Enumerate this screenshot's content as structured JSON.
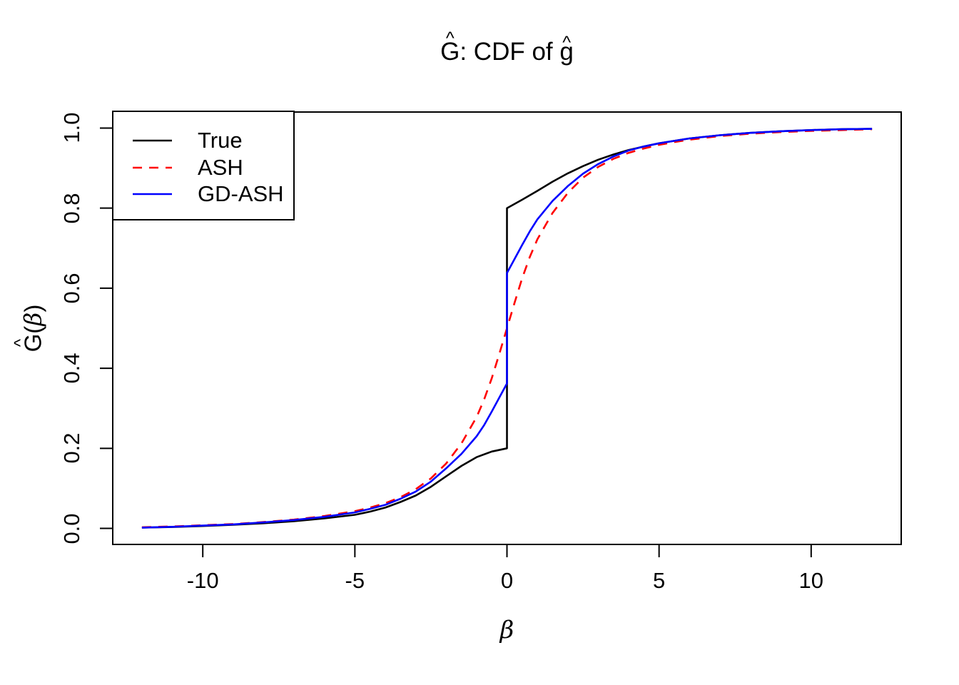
{
  "display": {
    "hat_char": "^",
    "title_g1": "G",
    "title_mid": ": CDF of ",
    "title_g2": "g",
    "ylabel_g": "G",
    "ylabel_open": "(",
    "ylabel_beta": "β",
    "ylabel_close": ")",
    "xlabel_beta": "β"
  },
  "chart_data": {
    "type": "line",
    "title": "Ĝ: CDF of ĝ",
    "xlabel": "β",
    "ylabel": "Ĝ(β)",
    "xlim": [
      -12.96,
      12.96
    ],
    "ylim": [
      -0.04,
      1.04
    ],
    "x_ticks": {
      "values": [
        -10,
        -5,
        0,
        5,
        10
      ],
      "labels": [
        "-10",
        "-5",
        "0",
        "5",
        "10"
      ]
    },
    "y_ticks": {
      "values": [
        0.0,
        0.2,
        0.4,
        0.6,
        0.8,
        1.0
      ],
      "labels": [
        "0.0",
        "0.2",
        "0.4",
        "0.6",
        "0.8",
        "1.0"
      ]
    },
    "grid": false,
    "background": "#ffffff",
    "box_color": "#000000",
    "legend": {
      "position": "top-left",
      "labels": [
        "True",
        "ASH",
        "GD-ASH"
      ]
    },
    "series": [
      {
        "name": "True",
        "color": "#000000",
        "linestyle": "solid",
        "linewidth": 2.6,
        "jump_at_zero": [
          0.2,
          0.8
        ],
        "points": [
          [
            -12,
            0.002
          ],
          [
            -11,
            0.0035
          ],
          [
            -10,
            0.006
          ],
          [
            -9,
            0.009
          ],
          [
            -8,
            0.013
          ],
          [
            -7,
            0.018
          ],
          [
            -6,
            0.025
          ],
          [
            -5,
            0.034
          ],
          [
            -4.5,
            0.042
          ],
          [
            -4,
            0.052
          ],
          [
            -3.5,
            0.066
          ],
          [
            -3,
            0.082
          ],
          [
            -2.5,
            0.104
          ],
          [
            -2,
            0.13
          ],
          [
            -1.5,
            0.156
          ],
          [
            -1,
            0.178
          ],
          [
            -0.5,
            0.192
          ],
          [
            0,
            0.2
          ],
          [
            0,
            0.8
          ],
          [
            0.5,
            0.821
          ],
          [
            1,
            0.843
          ],
          [
            1.5,
            0.866
          ],
          [
            2,
            0.887
          ],
          [
            2.5,
            0.905
          ],
          [
            3,
            0.921
          ],
          [
            3.5,
            0.934
          ],
          [
            4,
            0.945
          ],
          [
            4.5,
            0.954
          ],
          [
            5,
            0.962
          ],
          [
            5.5,
            0.968
          ],
          [
            6,
            0.974
          ],
          [
            7,
            0.982
          ],
          [
            8,
            0.988
          ],
          [
            9,
            0.992
          ],
          [
            10,
            0.995
          ],
          [
            11,
            0.997
          ],
          [
            12,
            0.998
          ]
        ]
      },
      {
        "name": "ASH",
        "color": "#ff0000",
        "linestyle": "dashed",
        "linewidth": 2.6,
        "jump_at_zero": null,
        "points": [
          [
            -12,
            0.003
          ],
          [
            -11,
            0.005
          ],
          [
            -10,
            0.008
          ],
          [
            -9,
            0.011
          ],
          [
            -8,
            0.016
          ],
          [
            -7,
            0.022
          ],
          [
            -6,
            0.031
          ],
          [
            -5,
            0.043
          ],
          [
            -4.5,
            0.052
          ],
          [
            -4,
            0.063
          ],
          [
            -3.5,
            0.078
          ],
          [
            -3,
            0.098
          ],
          [
            -2.5,
            0.125
          ],
          [
            -2,
            0.162
          ],
          [
            -1.5,
            0.212
          ],
          [
            -1,
            0.278
          ],
          [
            -0.75,
            0.322
          ],
          [
            -0.5,
            0.375
          ],
          [
            -0.25,
            0.436
          ],
          [
            0,
            0.5
          ],
          [
            0.25,
            0.564
          ],
          [
            0.5,
            0.625
          ],
          [
            0.75,
            0.678
          ],
          [
            1,
            0.722
          ],
          [
            1.5,
            0.788
          ],
          [
            2,
            0.838
          ],
          [
            2.5,
            0.876
          ],
          [
            3,
            0.903
          ],
          [
            3.5,
            0.923
          ],
          [
            4,
            0.938
          ],
          [
            4.5,
            0.949
          ],
          [
            5,
            0.958
          ],
          [
            5.5,
            0.965
          ],
          [
            6,
            0.971
          ],
          [
            7,
            0.98
          ],
          [
            8,
            0.986
          ],
          [
            9,
            0.99
          ],
          [
            10,
            0.993
          ],
          [
            11,
            0.995
          ],
          [
            12,
            0.997
          ]
        ]
      },
      {
        "name": "GD-ASH",
        "color": "#0000ff",
        "linestyle": "solid",
        "linewidth": 2.6,
        "jump_at_zero": [
          0.36,
          0.64
        ],
        "points": [
          [
            -12,
            0.002
          ],
          [
            -11,
            0.004
          ],
          [
            -10,
            0.007
          ],
          [
            -9,
            0.01
          ],
          [
            -8,
            0.015
          ],
          [
            -7,
            0.021
          ],
          [
            -6,
            0.029
          ],
          [
            -5,
            0.04
          ],
          [
            -4.5,
            0.049
          ],
          [
            -4,
            0.059
          ],
          [
            -3.5,
            0.074
          ],
          [
            -3,
            0.092
          ],
          [
            -2.5,
            0.117
          ],
          [
            -2,
            0.15
          ],
          [
            -1.5,
            0.186
          ],
          [
            -1,
            0.23
          ],
          [
            -0.75,
            0.258
          ],
          [
            -0.5,
            0.292
          ],
          [
            -0.25,
            0.327
          ],
          [
            0,
            0.362
          ],
          [
            0,
            0.638
          ],
          [
            0.25,
            0.673
          ],
          [
            0.5,
            0.708
          ],
          [
            0.75,
            0.742
          ],
          [
            1,
            0.772
          ],
          [
            1.5,
            0.818
          ],
          [
            2,
            0.855
          ],
          [
            2.5,
            0.886
          ],
          [
            3,
            0.91
          ],
          [
            3.5,
            0.929
          ],
          [
            4,
            0.944
          ],
          [
            4.5,
            0.954
          ],
          [
            5,
            0.962
          ],
          [
            5.5,
            0.968
          ],
          [
            6,
            0.974
          ],
          [
            7,
            0.982
          ],
          [
            8,
            0.988
          ],
          [
            9,
            0.992
          ],
          [
            10,
            0.995
          ],
          [
            11,
            0.997
          ],
          [
            12,
            0.998
          ]
        ]
      }
    ]
  }
}
